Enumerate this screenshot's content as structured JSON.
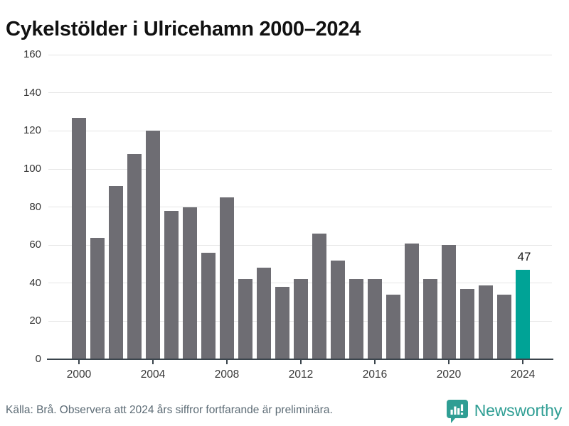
{
  "title": "Cykelstölder i Ulricehamn 2000–2024",
  "footer": {
    "source_note": "Källa: Brå. Observera att 2024 års siffror fortfarande är preliminära.",
    "brand": "Newsworthy"
  },
  "colors": {
    "bar": "#6E6D73",
    "highlight": "#00A396",
    "brand": "#2F9E94",
    "axis": "#3A444C",
    "grid": "#E5E5E5",
    "tick_text": "#363636",
    "footer_text": "#5C6B75",
    "title_text": "#111111"
  },
  "chart_data": {
    "type": "bar",
    "title": "Cykelstölder i Ulricehamn 2000–2024",
    "x": [
      2000,
      2001,
      2002,
      2003,
      2004,
      2005,
      2006,
      2007,
      2008,
      2009,
      2010,
      2011,
      2012,
      2013,
      2014,
      2015,
      2016,
      2017,
      2018,
      2019,
      2020,
      2021,
      2022,
      2023,
      2024
    ],
    "values": [
      127,
      64,
      91,
      108,
      120,
      78,
      80,
      56,
      85,
      42,
      48,
      38,
      42,
      66,
      52,
      42,
      42,
      34,
      61,
      42,
      60,
      37,
      39,
      34,
      47
    ],
    "highlight_index": 24,
    "data_label": {
      "index": 24,
      "text": "47"
    },
    "xlabel": "",
    "ylabel": "",
    "ylim": [
      0,
      160
    ],
    "ytick_step": 20,
    "xticks": [
      2000,
      2004,
      2008,
      2012,
      2016,
      2020,
      2024
    ],
    "grid": "horizontal",
    "legend": "none"
  }
}
